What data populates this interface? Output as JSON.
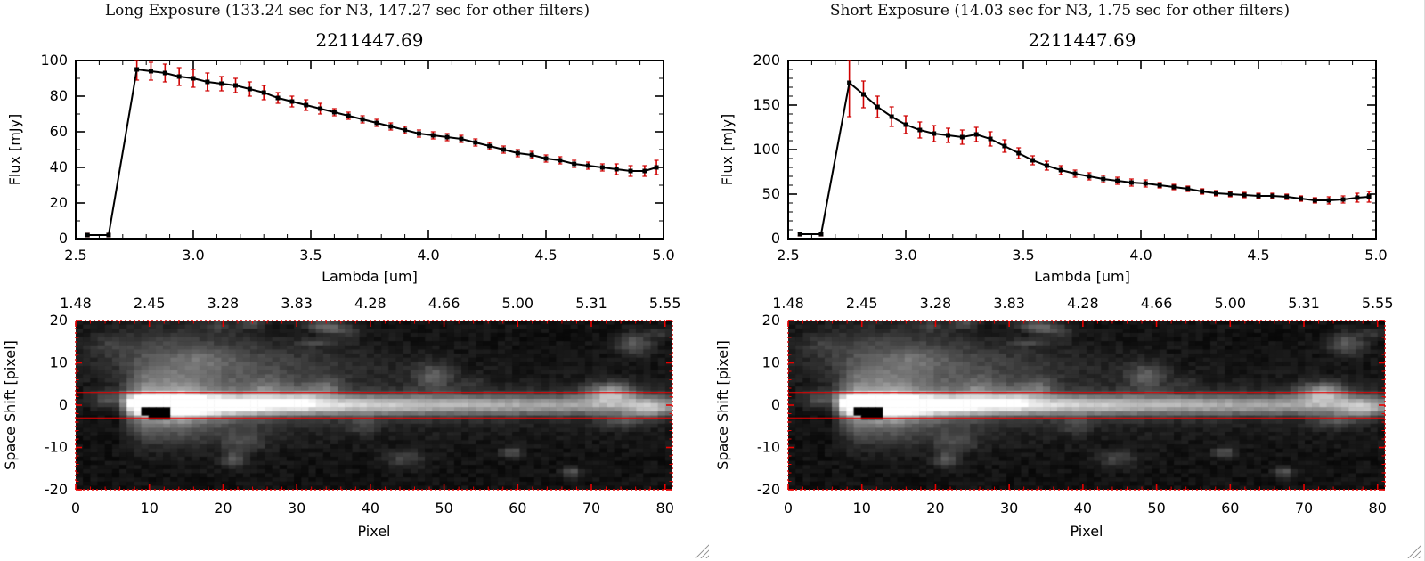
{
  "colors": {
    "background": "#ffffff",
    "foreground": "#000000",
    "axis_red": "#ea0000",
    "errorbar_red": "#cf0000"
  },
  "panels": [
    {
      "header": "Long Exposure (133.24 sec for N3, 147.27 sec for other filters)",
      "image": {
        "top_axis_labels": [
          "1.48",
          "2.45",
          "3.28",
          "3.83",
          "4.28",
          "4.66",
          "5.00",
          "5.31",
          "5.55"
        ],
        "xlabel": "Pixel",
        "ylabel": "Space Shift [pixel]",
        "xticks": [
          0,
          10,
          20,
          30,
          40,
          50,
          60,
          70,
          80
        ],
        "xtick_labels": [
          "0",
          "10",
          "20",
          "30",
          "40",
          "50",
          "60",
          "70",
          "80"
        ],
        "yticks": [
          20,
          10,
          0,
          -10,
          -20
        ],
        "ytick_labels": [
          "20",
          "10",
          "0",
          "-10",
          "-20"
        ],
        "shift_range": [
          -20,
          20
        ],
        "pixel_range": [
          0,
          81
        ],
        "aperture_lines": [
          3,
          -3
        ],
        "seed": 77
      }
    },
    {
      "header": "Short Exposure (14.03 sec for N3, 1.75 sec for other filters)",
      "image": {
        "top_axis_labels": [
          "1.48",
          "2.45",
          "3.28",
          "3.83",
          "4.28",
          "4.66",
          "5.00",
          "5.31",
          "5.55"
        ],
        "xlabel": "Pixel",
        "ylabel": "Space Shift [pixel]",
        "xticks": [
          0,
          10,
          20,
          30,
          40,
          50,
          60,
          70,
          80
        ],
        "xtick_labels": [
          "0",
          "10",
          "20",
          "30",
          "40",
          "50",
          "60",
          "70",
          "80"
        ],
        "yticks": [
          20,
          10,
          0,
          -10,
          -20
        ],
        "ytick_labels": [
          "20",
          "10",
          "0",
          "-10",
          "-20"
        ],
        "shift_range": [
          -20,
          20
        ],
        "pixel_range": [
          0,
          81
        ],
        "aperture_lines": [
          3,
          -3
        ],
        "seed": 77
      }
    }
  ],
  "chart_data": [
    {
      "type": "line",
      "exposure": "Long Exposure",
      "title": "2211447.69",
      "xlabel": "Lambda [um]",
      "ylabel": "Flux [mJy]",
      "xlim": [
        2.5,
        5.0
      ],
      "ylim": [
        0,
        100
      ],
      "xticks": [
        2.5,
        3.0,
        3.5,
        4.0,
        4.5,
        5.0
      ],
      "xtick_labels": [
        "2.5",
        "3.0",
        "3.5",
        "4.0",
        "4.5",
        "5.0"
      ],
      "x_minor": 0.1,
      "yticks": [
        0,
        20,
        40,
        60,
        80,
        100
      ],
      "ytick_labels": [
        "0",
        "20",
        "40",
        "60",
        "80",
        "100"
      ],
      "y_minor": 10,
      "marker": "square",
      "marker_color": "#000000",
      "line_color": "#000000",
      "errorbar_color": "#cf0000",
      "x": [
        2.55,
        2.64,
        2.76,
        2.82,
        2.88,
        2.94,
        3.0,
        3.06,
        3.12,
        3.18,
        3.24,
        3.3,
        3.36,
        3.42,
        3.48,
        3.54,
        3.6,
        3.66,
        3.72,
        3.78,
        3.84,
        3.9,
        3.96,
        4.02,
        4.08,
        4.14,
        4.2,
        4.26,
        4.32,
        4.38,
        4.44,
        4.5,
        4.56,
        4.62,
        4.68,
        4.74,
        4.8,
        4.86,
        4.92,
        4.97
      ],
      "y": [
        2,
        2,
        95,
        94,
        93,
        91,
        90,
        88,
        87,
        86,
        84,
        82,
        79,
        77,
        75,
        73,
        71,
        69,
        67,
        65,
        63,
        61,
        59,
        58,
        57,
        56,
        54,
        52,
        50,
        48,
        47,
        45,
        44,
        42,
        41,
        40,
        39,
        38,
        38,
        40
      ],
      "yerr": [
        1,
        1,
        6,
        5,
        5,
        5,
        5,
        5,
        4,
        4,
        4,
        4,
        3,
        3,
        3,
        3,
        2,
        2,
        2,
        2,
        2,
        2,
        2,
        2,
        2,
        2,
        2,
        2,
        2,
        2,
        2,
        2,
        2,
        2,
        2,
        2,
        3,
        3,
        3,
        4
      ]
    },
    {
      "type": "line",
      "exposure": "Short Exposure",
      "title": "2211447.69",
      "xlabel": "Lambda [um]",
      "ylabel": "Flux [mJy]",
      "xlim": [
        2.5,
        5.0
      ],
      "ylim": [
        0,
        200
      ],
      "xticks": [
        2.5,
        3.0,
        3.5,
        4.0,
        4.5,
        5.0
      ],
      "xtick_labels": [
        "2.5",
        "3.0",
        "3.5",
        "4.0",
        "4.5",
        "5.0"
      ],
      "x_minor": 0.1,
      "yticks": [
        0,
        50,
        100,
        150,
        200
      ],
      "ytick_labels": [
        "0",
        "50",
        "100",
        "150",
        "200"
      ],
      "y_minor": 10,
      "marker": "square",
      "marker_color": "#000000",
      "line_color": "#000000",
      "errorbar_color": "#cf0000",
      "x": [
        2.55,
        2.64,
        2.76,
        2.82,
        2.88,
        2.94,
        3.0,
        3.06,
        3.12,
        3.18,
        3.24,
        3.3,
        3.36,
        3.42,
        3.48,
        3.54,
        3.6,
        3.66,
        3.72,
        3.78,
        3.84,
        3.9,
        3.96,
        4.02,
        4.08,
        4.14,
        4.2,
        4.26,
        4.32,
        4.38,
        4.44,
        4.5,
        4.56,
        4.62,
        4.68,
        4.74,
        4.8,
        4.86,
        4.92,
        4.97
      ],
      "y": [
        5,
        5,
        175,
        162,
        148,
        137,
        128,
        122,
        118,
        116,
        114,
        117,
        112,
        104,
        96,
        88,
        82,
        77,
        73,
        70,
        67,
        65,
        63,
        62,
        60,
        58,
        56,
        53,
        51,
        50,
        49,
        48,
        48,
        47,
        45,
        43,
        43,
        44,
        46,
        47
      ],
      "yerr": [
        2,
        2,
        38,
        15,
        12,
        11,
        10,
        9,
        9,
        8,
        8,
        8,
        8,
        7,
        6,
        5,
        5,
        5,
        4,
        4,
        4,
        4,
        4,
        4,
        3,
        3,
        3,
        3,
        3,
        3,
        3,
        3,
        3,
        3,
        3,
        3,
        4,
        4,
        5,
        6
      ]
    }
  ]
}
